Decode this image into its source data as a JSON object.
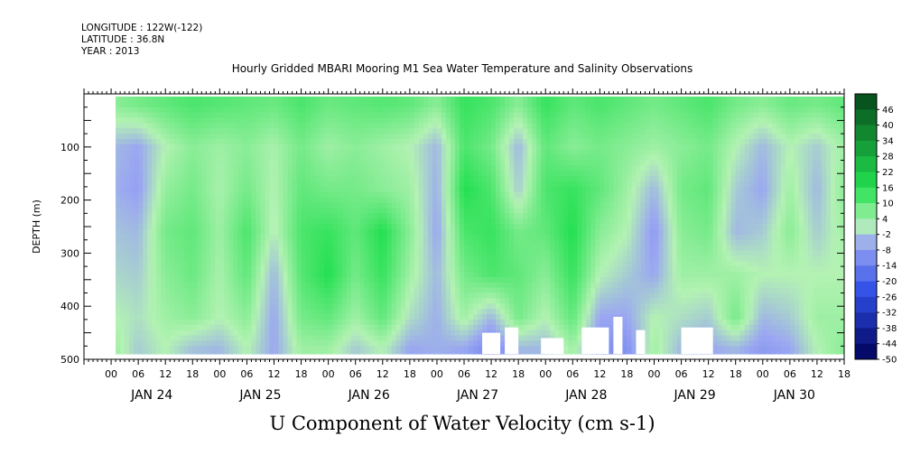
{
  "header": {
    "longitude": "LONGITUDE : 122W(-122)",
    "latitude": "LATITUDE : 36.8N",
    "year": "YEAR : 2013"
  },
  "colors": {
    "strong_negative": "#00005a",
    "negative": "#2f4fe6",
    "weak_negative": "#9aa6f2",
    "near_zero": "#b3f2b3",
    "positive": "#22e050",
    "strong_positive": "#06501c",
    "missing": "#ffffff"
  },
  "chart_data": {
    "type": "heatmap",
    "title": "Hourly Gridded MBARI Mooring M1 Sea Water Temperature and Salinity Observations",
    "xlabel": "",
    "ylabel": "DEPTH (m)",
    "units_label": "U Component of Water Velocity (cm s-1)",
    "x_range_hours": [
      -6,
      162
    ],
    "y_range_m": [
      0,
      500
    ],
    "y_inverted": true,
    "y_ticks": [
      {
        "value": 100,
        "label": "100"
      },
      {
        "value": 200,
        "label": "200"
      },
      {
        "value": 300,
        "label": "300"
      },
      {
        "value": 400,
        "label": "400"
      },
      {
        "value": 500,
        "label": "500"
      }
    ],
    "hour_tick_labels": [
      "00",
      "06",
      "12",
      "18",
      "00",
      "06",
      "12",
      "18",
      "00",
      "06",
      "12",
      "18",
      "00",
      "06",
      "12",
      "18",
      "00",
      "06",
      "12",
      "18",
      "00",
      "06",
      "12",
      "18",
      "00",
      "06",
      "12",
      "18"
    ],
    "day_labels": [
      {
        "hour": 9,
        "label": "JAN 24"
      },
      {
        "hour": 33,
        "label": "JAN 25"
      },
      {
        "hour": 57,
        "label": "JAN 26"
      },
      {
        "hour": 81,
        "label": "JAN 27"
      },
      {
        "hour": 105,
        "label": "JAN 28"
      },
      {
        "hour": 129,
        "label": "JAN 29"
      },
      {
        "hour": 151,
        "label": "JAN 30"
      }
    ],
    "colorbar": {
      "min": -50,
      "max": 52,
      "step": 6,
      "labels": [
        "46",
        "40",
        "34",
        "28",
        "22",
        "16",
        "10",
        "4",
        "-2",
        "-8",
        "-14",
        "-20",
        "-26",
        "-32",
        "-38",
        "-44",
        "-50"
      ]
    },
    "data_extent": {
      "start_hour": 1,
      "end_hour": 162,
      "top_depth_m": 5,
      "bottom_depth_m": 490
    },
    "column_profiles": [
      {
        "hour": 1,
        "u": [
          6,
          -4,
          -5,
          -3,
          -1,
          2,
          4
        ]
      },
      {
        "hour": 6,
        "u": [
          8,
          -6,
          -7,
          -4,
          -2,
          0,
          -2
        ]
      },
      {
        "hour": 12,
        "u": [
          10,
          2,
          5,
          8,
          6,
          4,
          2
        ]
      },
      {
        "hour": 18,
        "u": [
          12,
          6,
          8,
          10,
          9,
          6,
          -3
        ]
      },
      {
        "hour": 24,
        "u": [
          11,
          4,
          3,
          4,
          3,
          2,
          -4
        ]
      },
      {
        "hour": 30,
        "u": [
          10,
          6,
          8,
          12,
          10,
          6,
          2
        ]
      },
      {
        "hour": 36,
        "u": [
          9,
          3,
          2,
          1,
          -4,
          -6,
          -6
        ]
      },
      {
        "hour": 42,
        "u": [
          12,
          8,
          10,
          12,
          11,
          8,
          4
        ]
      },
      {
        "hour": 48,
        "u": [
          9,
          4,
          8,
          14,
          16,
          10,
          4
        ]
      },
      {
        "hour": 54,
        "u": [
          10,
          6,
          8,
          10,
          8,
          4,
          -2
        ]
      },
      {
        "hour": 60,
        "u": [
          11,
          4,
          6,
          16,
          14,
          10,
          2
        ]
      },
      {
        "hour": 66,
        "u": [
          10,
          2,
          4,
          6,
          4,
          0,
          -6
        ]
      },
      {
        "hour": 72,
        "u": [
          6,
          -4,
          -5,
          -6,
          -4,
          -5,
          -5
        ]
      },
      {
        "hour": 78,
        "u": [
          14,
          12,
          16,
          12,
          8,
          4,
          -6
        ]
      },
      {
        "hour": 84,
        "u": [
          12,
          8,
          12,
          14,
          12,
          -4,
          -12
        ]
      },
      {
        "hour": 90,
        "u": [
          6,
          -4,
          -2,
          8,
          10,
          8,
          -4
        ]
      },
      {
        "hour": 96,
        "u": [
          14,
          10,
          12,
          10,
          6,
          2,
          -4
        ]
      },
      {
        "hour": 102,
        "u": [
          10,
          6,
          14,
          16,
          14,
          10,
          4
        ]
      },
      {
        "hour": 108,
        "u": [
          12,
          8,
          10,
          6,
          2,
          -6,
          -10
        ]
      },
      {
        "hour": 114,
        "u": [
          10,
          6,
          4,
          2,
          -2,
          -6,
          -10
        ]
      },
      {
        "hour": 120,
        "u": [
          8,
          4,
          -4,
          -8,
          -6,
          2,
          4
        ]
      },
      {
        "hour": 126,
        "u": [
          10,
          6,
          8,
          6,
          4,
          0,
          -4
        ]
      },
      {
        "hour": 132,
        "u": [
          12,
          8,
          10,
          8,
          4,
          -2,
          -6
        ]
      },
      {
        "hour": 138,
        "u": [
          8,
          2,
          -2,
          -4,
          4,
          8,
          -4
        ]
      },
      {
        "hour": 144,
        "u": [
          6,
          -4,
          -6,
          -2,
          2,
          -4,
          -8
        ]
      },
      {
        "hour": 150,
        "u": [
          9,
          2,
          4,
          6,
          2,
          -2,
          -6
        ]
      },
      {
        "hour": 156,
        "u": [
          8,
          -2,
          -4,
          -2,
          2,
          4,
          2
        ]
      },
      {
        "hour": 162,
        "u": [
          10,
          4,
          6,
          4,
          2,
          4,
          6
        ]
      }
    ],
    "profile_depths_m": [
      20,
      100,
      180,
      260,
      340,
      420,
      480
    ]
  }
}
